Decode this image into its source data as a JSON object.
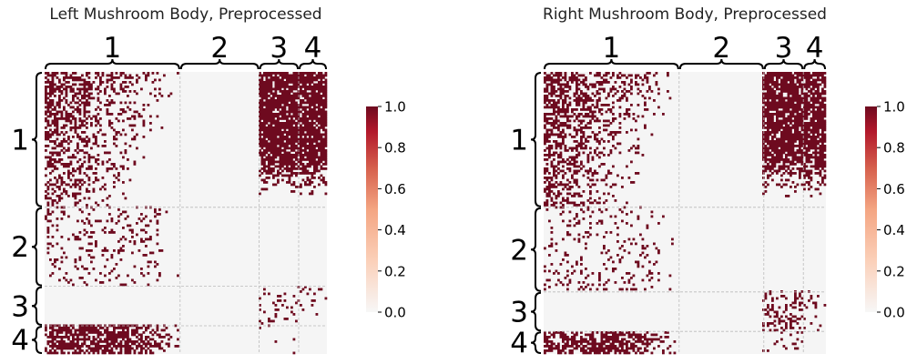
{
  "chart_data": [
    {
      "type": "heatmap",
      "title": "Left Mushroom Body, Preprocessed",
      "block_labels": [
        "1",
        "2",
        "3",
        "4"
      ],
      "block_fractions": [
        0.48,
        0.28,
        0.14,
        0.1
      ],
      "colorbar": {
        "min": 0.0,
        "max": 1.0,
        "ticks": [
          "0.0",
          "0.2",
          "0.4",
          "0.6",
          "0.8",
          "1.0"
        ]
      },
      "colors": {
        "low": "#f5f5f5",
        "high": "#6e0a1f",
        "mid": "#f4a582"
      },
      "grid": true,
      "block_density": [
        [
          0.55,
          0.0,
          0.85,
          0.85
        ],
        [
          0.12,
          0.0,
          0.0,
          0.0
        ],
        [
          0.0,
          0.0,
          0.1,
          0.06
        ],
        [
          0.65,
          0.0,
          0.02,
          0.0
        ]
      ]
    },
    {
      "type": "heatmap",
      "title": "Right Mushroom Body, Preprocessed",
      "block_labels": [
        "1",
        "2",
        "3",
        "4"
      ],
      "block_fractions": [
        0.48,
        0.3,
        0.14,
        0.1
      ],
      "colorbar": {
        "min": 0.0,
        "max": 1.0,
        "ticks": [
          "0.0",
          "0.2",
          "0.4",
          "0.6",
          "0.8",
          "1.0"
        ]
      },
      "colors": {
        "low": "#f5f5f5",
        "high": "#6e0a1f",
        "mid": "#f4a582"
      },
      "grid": true,
      "block_density": [
        [
          0.55,
          0.0,
          0.85,
          0.85
        ],
        [
          0.12,
          0.0,
          0.0,
          0.0
        ],
        [
          0.0,
          0.0,
          0.28,
          0.12
        ],
        [
          0.62,
          0.0,
          0.08,
          0.0
        ]
      ]
    }
  ]
}
